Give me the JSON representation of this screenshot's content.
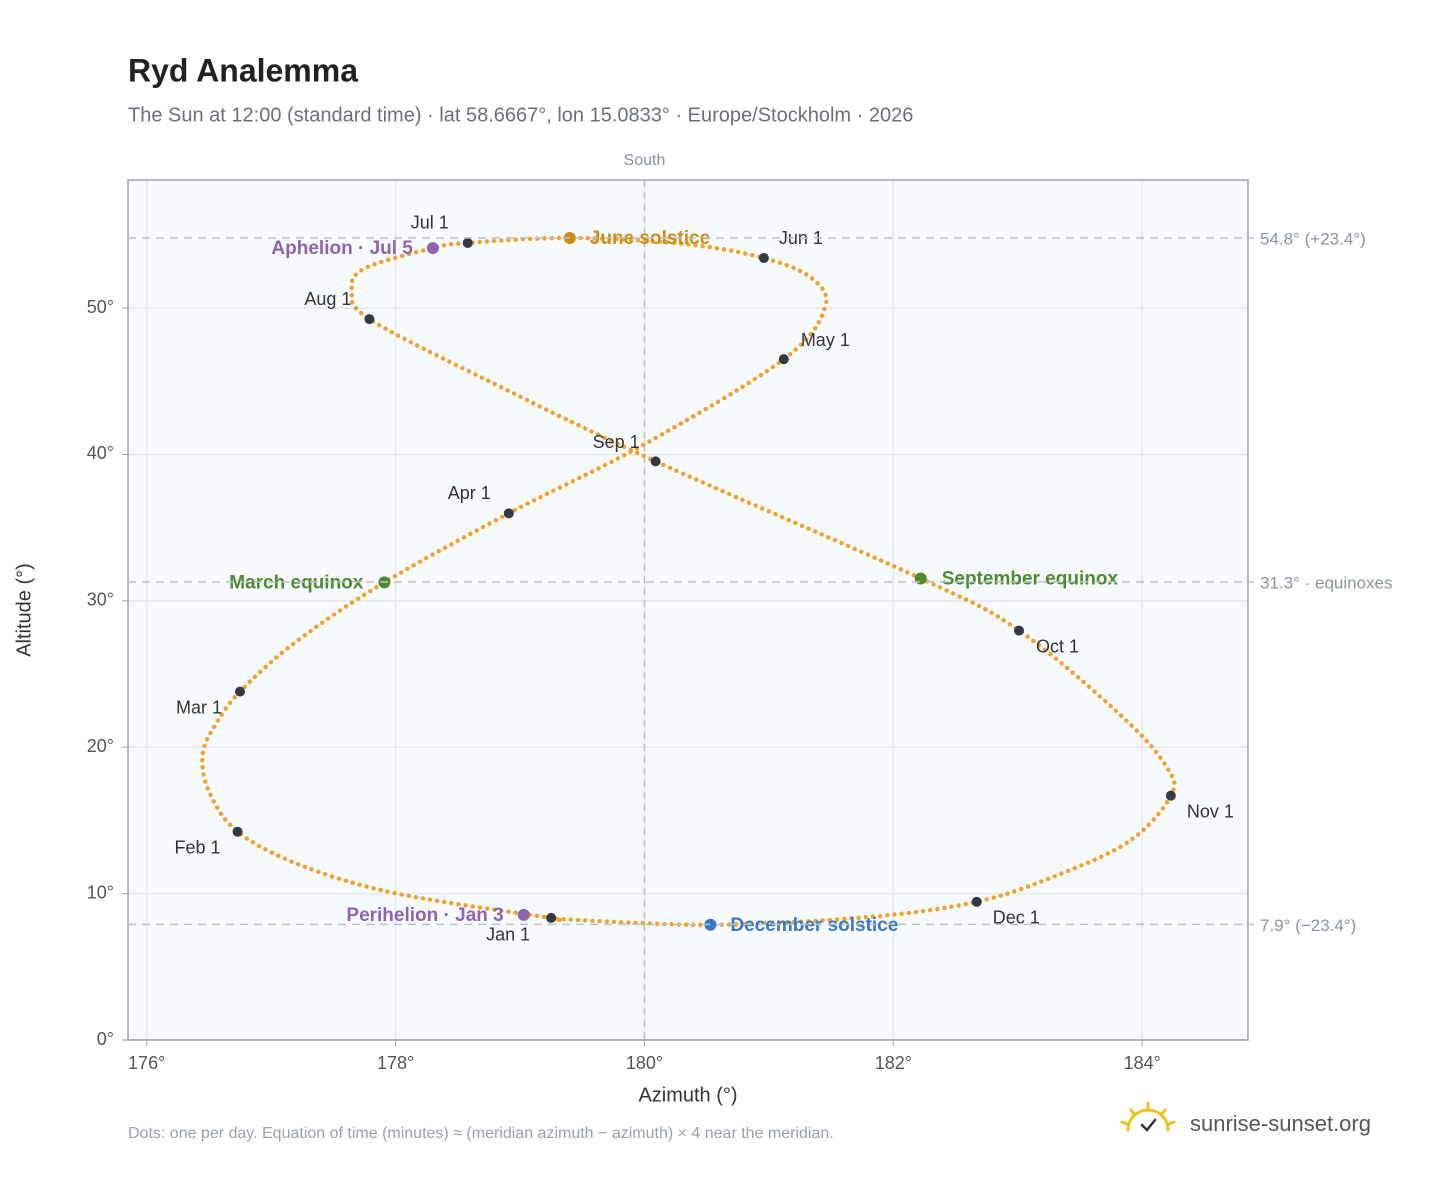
{
  "chart_data": {
    "type": "analemma",
    "title": "Ryd Analemma",
    "subtitle": "The Sun at 12:00 (standard time) · lat 58.6667°, lon 15.0833° · Europe/Stockholm · 2026",
    "x_label": "Azimuth (°)",
    "y_label": "Altitude (°)",
    "xlim": [
      175.85,
      184.85
    ],
    "ylim": [
      0,
      58.75
    ],
    "xticks": [
      {
        "value": 176,
        "label": "176°"
      },
      {
        "value": 178,
        "label": "178°"
      },
      {
        "value": 180,
        "label": "180°"
      },
      {
        "value": 182,
        "label": "182°"
      },
      {
        "value": 184,
        "label": "184°"
      }
    ],
    "yticks": [
      {
        "value": 0,
        "label": "0°"
      },
      {
        "value": 10,
        "label": "10°"
      },
      {
        "value": 20,
        "label": "20°"
      },
      {
        "value": 30,
        "label": "30°"
      },
      {
        "value": 40,
        "label": "40°"
      },
      {
        "value": 50,
        "label": "50°"
      }
    ],
    "grid": true,
    "path": {
      "color": "#f0a22e",
      "x": [
        179.25,
        178.02,
        177.25,
        176.73,
        176.5,
        176.45,
        176.55,
        176.75,
        177.2,
        177.91,
        178.91,
        180.0,
        181.12,
        181.45,
        181.35,
        180.96,
        180.3,
        179.4,
        178.58,
        178.3,
        177.75,
        177.65,
        177.79,
        178.8,
        180.09,
        182.22,
        183.01,
        183.85,
        184.2,
        184.23,
        183.9,
        183.3,
        182.67,
        181.8,
        180.53,
        179.35
      ],
      "y": [
        8.34,
        9.99,
        11.9,
        14.23,
        17.0,
        19.5,
        21.5,
        23.8,
        27.2,
        31.26,
        35.98,
        40.7,
        46.51,
        50.0,
        52.0,
        53.42,
        54.4,
        54.79,
        54.45,
        54.1,
        52.7,
        51.2,
        49.25,
        44.8,
        39.53,
        31.53,
        27.97,
        22.0,
        18.6,
        16.69,
        13.6,
        11.2,
        9.44,
        8.4,
        7.87,
        8.25
      ]
    },
    "months": {
      "color": "#333a44",
      "labels": [
        "Jan 1",
        "Feb 1",
        "Mar 1",
        "Apr 1",
        "May 1",
        "Jun 1",
        "Jul 1",
        "Aug 1",
        "Sep 1",
        "Oct 1",
        "Nov 1",
        "Dec 1"
      ],
      "x": [
        179.25,
        176.73,
        176.75,
        178.91,
        181.12,
        180.96,
        178.58,
        177.79,
        180.09,
        183.01,
        184.23,
        182.67
      ],
      "y": [
        8.34,
        14.23,
        23.8,
        35.98,
        46.51,
        53.42,
        54.45,
        49.25,
        39.53,
        27.97,
        16.69,
        9.44
      ]
    },
    "events": [
      {
        "label": "March equinox",
        "x": 177.91,
        "y": 31.26,
        "color": "#4e8a2e"
      },
      {
        "label": "June solstice",
        "x": 179.4,
        "y": 54.79,
        "color": "#d08c10"
      },
      {
        "label": "September equinox",
        "x": 182.22,
        "y": 31.53,
        "color": "#4e8a2e"
      },
      {
        "label": "December solstice",
        "x": 180.53,
        "y": 7.87,
        "color": "#3a78c0"
      },
      {
        "label": "Perihelion · Jan 3",
        "x": 179.03,
        "y": 8.55,
        "color": "#8e64b0"
      },
      {
        "label": "Aphelion · Jul 5",
        "x": 178.3,
        "y": 54.1,
        "color": "#8e64b0"
      }
    ],
    "ref_lines": [
      {
        "y": 54.8,
        "label": "54.8° (+23.4°)"
      },
      {
        "y": 31.3,
        "label": "31.3° · equinoxes"
      },
      {
        "y": 7.9,
        "label": "7.9° (−23.4°)"
      }
    ],
    "meridian": {
      "x": 180,
      "label": "South"
    },
    "note": "Dots: one per day. Equation of time (minutes) ≈ (meridian azimuth − azimuth) × 4 near the meridian.",
    "brand": "sunrise-sunset.org"
  }
}
